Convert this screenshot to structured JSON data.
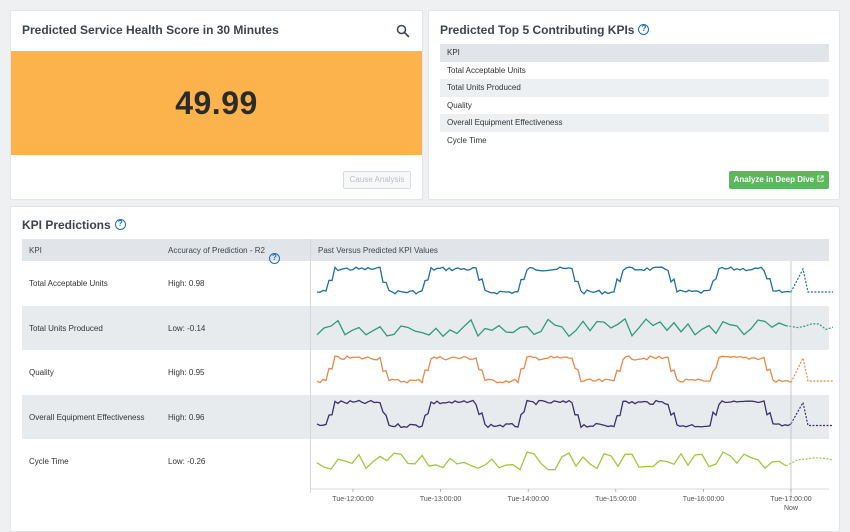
{
  "score_card": {
    "title": "Predicted Service Health Score in 30 Minutes",
    "score": "49.99",
    "score_color": "#fdb34b",
    "cause_button": "Cause Analysis",
    "search_icon": "search-icon"
  },
  "kpi_card": {
    "title": "Predicted Top 5 Contributing KPIs",
    "header": "KPI",
    "items": [
      "Total Acceptable Units",
      "Total Units Produced",
      "Quality",
      "Overall Equipment Effectiveness",
      "Cycle Time"
    ],
    "deep_dive_button": "Analyze in Deep Dive",
    "deep_dive_color": "#5cb85c"
  },
  "predictions": {
    "title": "KPI Predictions",
    "columns": [
      "KPI",
      "Accuracy of Prediction - R2",
      "Past Versus Predicted KPI Values"
    ],
    "rows": [
      {
        "kpi": "Total Acceptable Units",
        "accuracy": "High: 0.98",
        "color": "#1f6ea3",
        "pattern": "square"
      },
      {
        "kpi": "Total Units Produced",
        "accuracy": "Low: -0.14",
        "color": "#2e9b77",
        "pattern": "noise"
      },
      {
        "kpi": "Quality",
        "accuracy": "High: 0.95",
        "color": "#e8894a",
        "pattern": "square"
      },
      {
        "kpi": "Overall Equipment Effectiveness",
        "accuracy": "High: 0.96",
        "color": "#3b2f6e",
        "pattern": "square"
      },
      {
        "kpi": "Cycle Time",
        "accuracy": "Low: -0.26",
        "color": "#9fc93c",
        "pattern": "noise"
      }
    ],
    "time_ticks": [
      "Tue-12:00:00",
      "Tue-13:00:00",
      "Tue-14:00:00",
      "Tue-15:00:00",
      "Tue-16:00:00",
      "Tue-17:00:00"
    ],
    "now_label": "Now"
  }
}
